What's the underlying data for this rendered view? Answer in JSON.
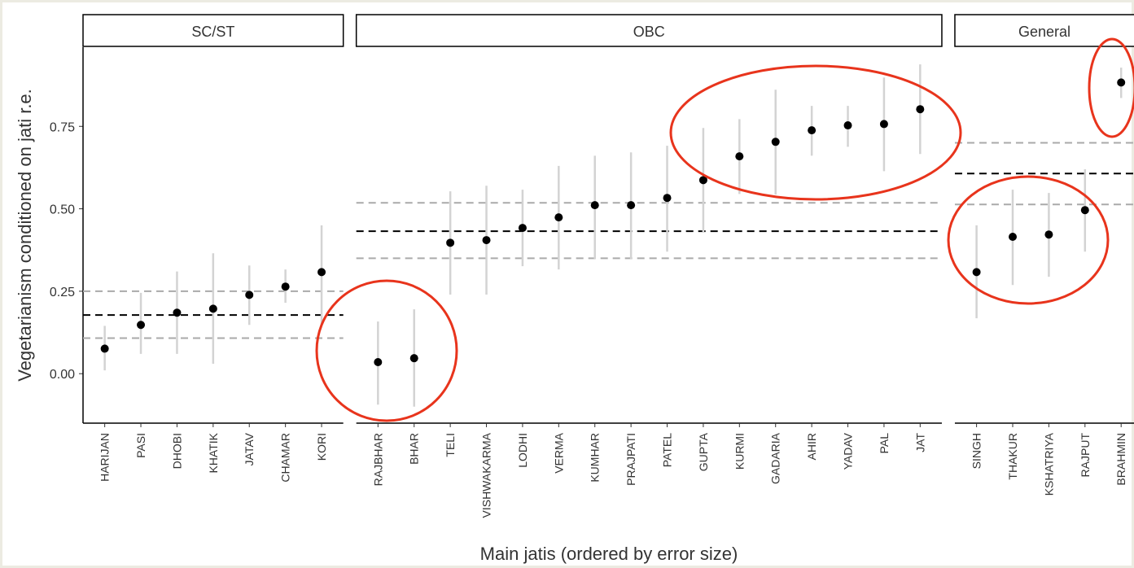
{
  "chart_data": {
    "type": "errorbar",
    "xlabel": "Main jatis (ordered by error size)",
    "ylabel": "Vegetarianism conditioned on jati r.e.",
    "ylim": [
      -0.15,
      0.99
    ],
    "yticks": [
      {
        "value": 0,
        "label": "0.00"
      },
      {
        "value": 0.25,
        "label": "0.25"
      },
      {
        "value": 0.5,
        "label": "0.50"
      },
      {
        "value": 0.75,
        "label": "0.75"
      }
    ],
    "point_color": "#000000",
    "errorbar_color": "#d3d3d3",
    "facets": [
      {
        "title": "SC/ST",
        "categories": [
          "HARIJAN",
          "PASI",
          "DHOBI",
          "KHATIK",
          "JATAV",
          "CHAMAR",
          "KORI"
        ],
        "values": [
          0.076,
          0.148,
          0.185,
          0.197,
          0.239,
          0.264,
          0.308
        ],
        "lower": [
          0.01,
          0.06,
          0.06,
          0.03,
          0.148,
          0.215,
          0.15
        ],
        "upper": [
          0.145,
          0.245,
          0.31,
          0.365,
          0.328,
          0.316,
          0.45
        ],
        "mean": 0.178,
        "band_low": 0.108,
        "band_high": 0.25
      },
      {
        "title": "OBC",
        "categories": [
          "RAJBHAR",
          "BHAR",
          "TELI",
          "VISHWAKARMA",
          "LODHI",
          "VERMA",
          "KUMHAR",
          "PRAJPATI",
          "PATEL",
          "GUPTA",
          "KURMI",
          "GADARIA",
          "AHIR",
          "YADAV",
          "PAL",
          "JAT"
        ],
        "values": [
          0.035,
          0.047,
          0.397,
          0.405,
          0.442,
          0.474,
          0.511,
          0.511,
          0.533,
          0.587,
          0.659,
          0.703,
          0.738,
          0.753,
          0.757,
          0.802
        ],
        "lower": [
          -0.094,
          -0.1,
          0.24,
          0.24,
          0.326,
          0.316,
          0.348,
          0.348,
          0.37,
          0.43,
          0.545,
          0.543,
          0.661,
          0.688,
          0.614,
          0.666
        ],
        "upper": [
          0.158,
          0.195,
          0.553,
          0.57,
          0.558,
          0.63,
          0.661,
          0.671,
          0.691,
          0.745,
          0.772,
          0.861,
          0.812,
          0.812,
          0.898,
          0.938
        ],
        "mean": 0.432,
        "band_low": 0.35,
        "band_high": 0.518
      },
      {
        "title": "General",
        "categories": [
          "SINGH",
          "THAKUR",
          "KSHATRIYA",
          "RAJPUT",
          "BRAHMIN"
        ],
        "values": [
          0.308,
          0.415,
          0.422,
          0.496,
          0.883
        ],
        "lower": [
          0.168,
          0.269,
          0.294,
          0.37,
          0.836
        ],
        "upper": [
          0.45,
          0.558,
          0.548,
          0.62,
          0.928
        ],
        "mean": 0.607,
        "band_low": 0.513,
        "band_high": 0.7
      }
    ]
  }
}
